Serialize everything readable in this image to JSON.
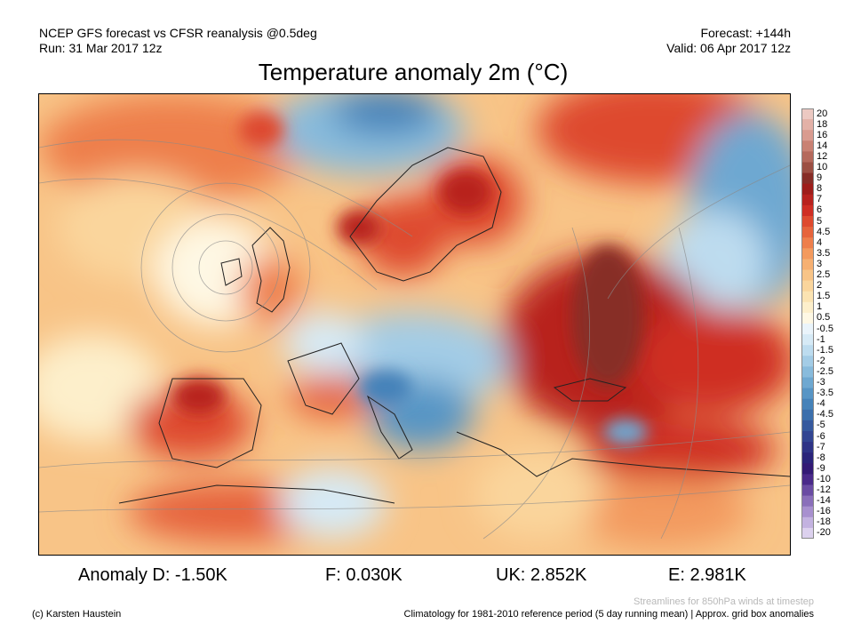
{
  "header": {
    "model_line": "NCEP GFS forecast vs CFSR reanalysis @0.5deg",
    "run_line": "Run: 31 Mar 2017 12z",
    "forecast_line": "Forecast: +144h",
    "valid_line": "Valid: 06 Apr 2017 12z"
  },
  "title": "Temperature anomaly 2m (°C)",
  "colorbar": {
    "labels": [
      "20",
      "18",
      "16",
      "14",
      "12",
      "10",
      "9",
      "8",
      "7",
      "6",
      "5",
      "4.5",
      "4",
      "3.5",
      "3",
      "2.5",
      "2",
      "1.5",
      "1",
      "0.5",
      "-0.5",
      "-1",
      "-1.5",
      "-2",
      "-2.5",
      "-3",
      "-3.5",
      "-4",
      "-4.5",
      "-5",
      "-6",
      "-7",
      "-8",
      "-9",
      "-10",
      "-12",
      "-14",
      "-16",
      "-18",
      "-20"
    ],
    "colors": [
      "#ecc9c2",
      "#e3b1a7",
      "#d99b8f",
      "#c98173",
      "#b5695c",
      "#9c4f43",
      "#872d27",
      "#9e1d1a",
      "#b8221e",
      "#cf2e24",
      "#de4a2f",
      "#e6643c",
      "#ee7f4c",
      "#f39a5e",
      "#f6b072",
      "#f8c487",
      "#fad59c",
      "#fbe3b2",
      "#fdefcb",
      "#fef8e4",
      "#eaf4fb",
      "#d6eaf6",
      "#bddcef",
      "#a3cce6",
      "#88bbdc",
      "#6ea8d1",
      "#5795c5",
      "#4582b9",
      "#3b6fac",
      "#36599e",
      "#324592",
      "#2e3386",
      "#2a247a",
      "#331a75",
      "#4a2a8a",
      "#6a4ca3",
      "#8a6fba",
      "#a890cf",
      "#c3b2e0",
      "#dcd1ee"
    ]
  },
  "stats": [
    {
      "label": "Anomaly D: -1.50K"
    },
    {
      "label": "F: 0.030K"
    },
    {
      "label": "UK: 2.852K"
    },
    {
      "label": "E: 2.981K"
    }
  ],
  "streamline_note": "Streamlines for 850hPa winds at timestep",
  "credit": "(c) Karsten Haustein",
  "climatology_note": "Climatology for 1981-2010 reference period (5 day running mean) | Approx. grid box anomalies"
}
